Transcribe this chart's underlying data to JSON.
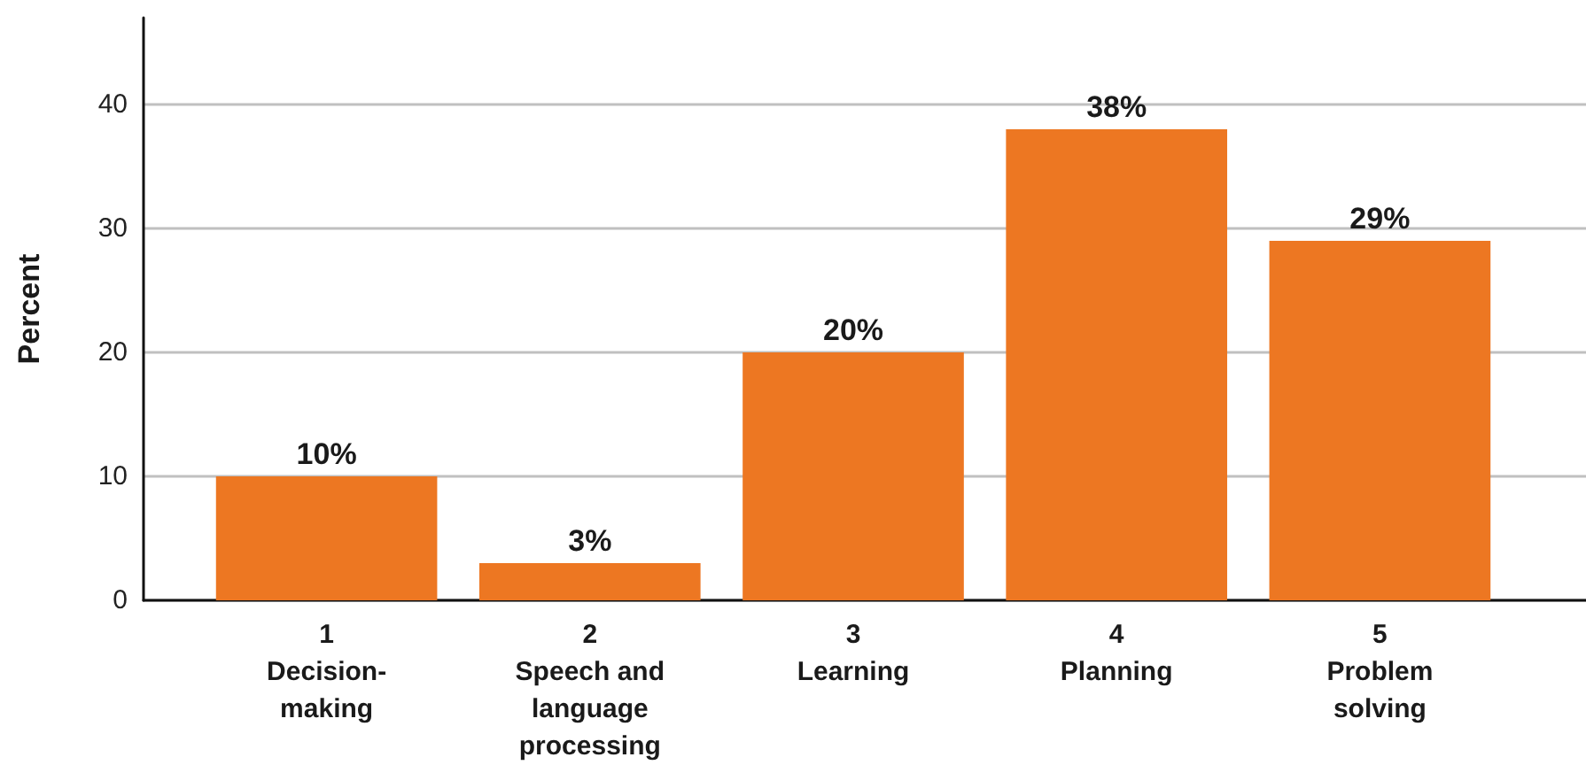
{
  "chart_data": {
    "type": "bar",
    "ylabel": "Percent",
    "categories": [
      "1\nDecision-\nmaking",
      "2\nSpeech and\nlanguage\nprocessing",
      "3\nLearning",
      "4\nPlanning",
      "5\nProblem\nsolving"
    ],
    "values": [
      10,
      3,
      20,
      38,
      29
    ],
    "value_labels": [
      "10%",
      "3%",
      "20%",
      "38%",
      "29%"
    ],
    "color": "#ed7722",
    "ylim": [
      0,
      47
    ],
    "yticks": [
      0,
      10,
      20,
      30,
      40
    ],
    "grid": "y"
  }
}
